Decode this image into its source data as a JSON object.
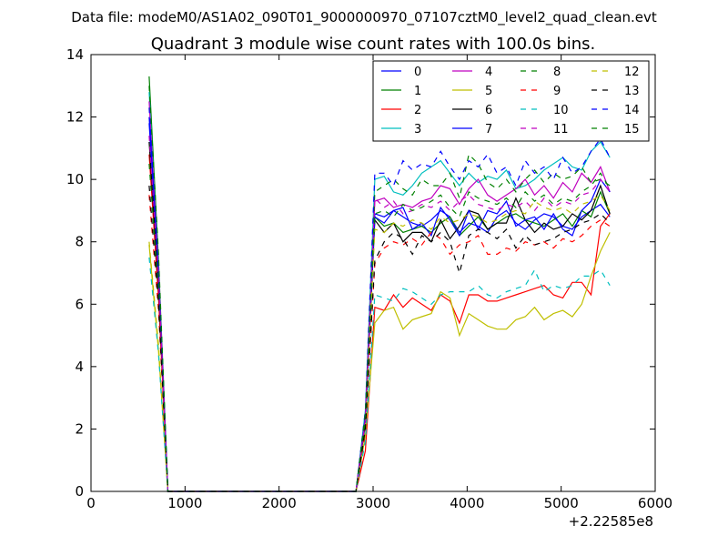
{
  "page": {
    "header": "Data file: modeM0/AS1A02_090T01_9000000970_07107cztM0_level2_quad_clean.evt"
  },
  "chart_data": {
    "type": "line",
    "title": "Quadrant 3 module wise count rates with 100.0s bins.",
    "xlabel": "",
    "ylabel": "",
    "x_offset_label": "+2.22585e8",
    "xlim": [
      0,
      6000
    ],
    "ylim": [
      0,
      14
    ],
    "x_ticks": [
      "0",
      "1000",
      "2000",
      "3000",
      "4000",
      "5000",
      "6000"
    ],
    "y_ticks": [
      "0",
      "2",
      "4",
      "6",
      "8",
      "10",
      "12",
      "14"
    ],
    "grid": false,
    "legend_position": "top-right",
    "legend_columns": 4,
    "x": [
      618,
      718,
      818,
      918,
      1018,
      1118,
      1218,
      1318,
      1418,
      1518,
      1618,
      1718,
      1818,
      1918,
      2018,
      2118,
      2218,
      2318,
      2418,
      2518,
      2618,
      2718,
      2818,
      2918,
      3018,
      3118,
      3218,
      3318,
      3418,
      3518,
      3618,
      3718,
      3818,
      3918,
      4018,
      4118,
      4218,
      4318,
      4418,
      4518,
      4618,
      4718,
      4818,
      4918,
      5018,
      5118,
      5218,
      5318,
      5418,
      5518
    ],
    "series": [
      {
        "name": "0",
        "color": "#0000ff",
        "dash": "solid",
        "values": [
          11.8,
          7.0,
          0,
          0,
          0,
          0,
          0,
          0,
          0,
          0,
          0,
          0,
          0,
          0,
          0,
          0,
          0,
          0,
          0,
          0,
          0,
          0,
          0,
          2.2,
          8.9,
          8.8,
          9.0,
          8.8,
          8.6,
          8.5,
          8.7,
          9.0,
          8.8,
          8.3,
          8.6,
          8.5,
          8.3,
          8.8,
          9.0,
          8.6,
          8.4,
          8.7,
          8.9,
          8.8,
          8.5,
          8.4,
          8.8,
          9.0,
          9.2,
          8.8
        ]
      },
      {
        "name": "1",
        "color": "#008000",
        "dash": "solid",
        "values": [
          13.3,
          7.4,
          0,
          0,
          0,
          0,
          0,
          0,
          0,
          0,
          0,
          0,
          0,
          0,
          0,
          0,
          0,
          0,
          0,
          0,
          0,
          0,
          0,
          2.5,
          8.8,
          8.5,
          8.6,
          8.3,
          8.4,
          8.5,
          8.3,
          8.6,
          8.8,
          8.2,
          8.5,
          8.8,
          8.4,
          8.6,
          8.8,
          8.9,
          8.7,
          8.6,
          8.5,
          8.7,
          8.9,
          8.5,
          9.0,
          8.8,
          9.6,
          8.9
        ]
      },
      {
        "name": "2",
        "color": "#ff0000",
        "dash": "solid",
        "values": [
          10.8,
          6.2,
          0,
          0,
          0,
          0,
          0,
          0,
          0,
          0,
          0,
          0,
          0,
          0,
          0,
          0,
          0,
          0,
          0,
          0,
          0,
          0,
          0,
          1.3,
          5.9,
          5.8,
          6.3,
          5.9,
          6.2,
          6.0,
          5.8,
          6.3,
          6.1,
          5.4,
          6.3,
          6.3,
          6.1,
          6.1,
          6.2,
          6.3,
          6.4,
          6.5,
          6.6,
          6.3,
          6.2,
          6.7,
          6.7,
          6.3,
          8.5,
          8.9
        ]
      },
      {
        "name": "3",
        "color": "#00bfbf",
        "dash": "solid",
        "values": [
          12.8,
          7.2,
          0,
          0,
          0,
          0,
          0,
          0,
          0,
          0,
          0,
          0,
          0,
          0,
          0,
          0,
          0,
          0,
          0,
          0,
          0,
          0,
          0,
          2.6,
          10.0,
          10.1,
          9.6,
          9.5,
          9.8,
          10.2,
          10.4,
          10.6,
          10.2,
          9.8,
          10.2,
          9.9,
          10.1,
          10.0,
          10.3,
          9.7,
          9.8,
          10.0,
          10.3,
          10.5,
          10.7,
          10.4,
          10.3,
          10.9,
          11.2,
          10.7
        ]
      },
      {
        "name": "4",
        "color": "#bf00bf",
        "dash": "solid",
        "values": [
          12.5,
          7.1,
          0,
          0,
          0,
          0,
          0,
          0,
          0,
          0,
          0,
          0,
          0,
          0,
          0,
          0,
          0,
          0,
          0,
          0,
          0,
          0,
          0,
          2.4,
          9.3,
          9.4,
          9.1,
          9.2,
          9.1,
          9.3,
          9.4,
          9.8,
          9.7,
          9.2,
          9.7,
          10.0,
          9.5,
          9.3,
          9.5,
          9.7,
          10.0,
          9.5,
          9.8,
          9.4,
          9.9,
          9.6,
          10.2,
          9.9,
          10.4,
          9.6
        ]
      },
      {
        "name": "5",
        "color": "#bfbf00",
        "dash": "solid",
        "values": [
          7.9,
          4.5,
          0,
          0,
          0,
          0,
          0,
          0,
          0,
          0,
          0,
          0,
          0,
          0,
          0,
          0,
          0,
          0,
          0,
          0,
          0,
          0,
          0,
          1.8,
          5.4,
          5.8,
          5.9,
          5.2,
          5.5,
          5.6,
          5.7,
          6.4,
          6.2,
          5.0,
          5.7,
          5.5,
          5.3,
          5.2,
          5.2,
          5.5,
          5.6,
          5.9,
          5.5,
          5.7,
          5.8,
          5.6,
          6.0,
          6.9,
          7.7,
          8.3
        ]
      },
      {
        "name": "6",
        "color": "#000000",
        "dash": "solid",
        "values": [
          11.2,
          6.6,
          0,
          0,
          0,
          0,
          0,
          0,
          0,
          0,
          0,
          0,
          0,
          0,
          0,
          0,
          0,
          0,
          0,
          0,
          0,
          0,
          0,
          2.2,
          8.7,
          8.3,
          8.6,
          8.0,
          8.3,
          8.3,
          8.0,
          8.7,
          8.1,
          8.5,
          9.0,
          8.9,
          8.4,
          8.6,
          8.6,
          9.4,
          8.7,
          8.3,
          8.6,
          8.4,
          8.5,
          8.9,
          8.7,
          9.0,
          9.8,
          8.9
        ]
      },
      {
        "name": "7",
        "color": "#0000ff",
        "dash": "solid",
        "values": [
          12.0,
          7.0,
          0,
          0,
          0,
          0,
          0,
          0,
          0,
          0,
          0,
          0,
          0,
          0,
          0,
          0,
          0,
          0,
          0,
          0,
          0,
          0,
          0,
          2.4,
          8.8,
          8.6,
          9.0,
          9.1,
          8.4,
          8.6,
          8.2,
          9.1,
          8.7,
          8.2,
          9.0,
          8.4,
          9.0,
          8.9,
          9.3,
          8.5,
          8.7,
          8.8,
          8.4,
          8.9,
          8.4,
          8.2,
          9.0,
          9.3,
          10.0,
          9.6
        ]
      },
      {
        "name": "8",
        "color": "#008000",
        "dash": "dashed",
        "values": [
          10.5,
          6.4,
          0,
          0,
          0,
          0,
          0,
          0,
          0,
          0,
          0,
          0,
          0,
          0,
          0,
          0,
          0,
          0,
          0,
          0,
          0,
          0,
          0,
          2.3,
          9.6,
          9.8,
          10.0,
          9.7,
          9.5,
          10.0,
          9.8,
          9.8,
          10.2,
          9.4,
          10.8,
          10.5,
          9.9,
          9.7,
          10.0,
          9.6,
          10.0,
          10.3,
          9.9,
          10.2,
          10.0,
          10.1,
          10.4,
          9.9,
          10.0,
          9.8
        ]
      },
      {
        "name": "9",
        "color": "#ff0000",
        "dash": "dashed",
        "values": [
          9.5,
          5.8,
          0,
          0,
          0,
          0,
          0,
          0,
          0,
          0,
          0,
          0,
          0,
          0,
          0,
          0,
          0,
          0,
          0,
          0,
          0,
          0,
          0,
          1.9,
          7.3,
          7.8,
          8.0,
          7.9,
          8.1,
          7.9,
          8.3,
          8.1,
          7.6,
          7.9,
          8.0,
          8.2,
          7.6,
          7.6,
          7.8,
          7.7,
          8.0,
          7.9,
          8.0,
          7.8,
          8.1,
          8.0,
          8.2,
          8.5,
          8.7,
          8.5
        ]
      },
      {
        "name": "10",
        "color": "#00bfbf",
        "dash": "dashed",
        "values": [
          7.5,
          4.4,
          0,
          0,
          0,
          0,
          0,
          0,
          0,
          0,
          0,
          0,
          0,
          0,
          0,
          0,
          0,
          0,
          0,
          0,
          0,
          0,
          0,
          1.6,
          6.3,
          6.2,
          6.1,
          6.5,
          6.4,
          6.2,
          6.0,
          6.3,
          6.4,
          6.4,
          6.4,
          6.6,
          6.3,
          6.2,
          6.4,
          6.5,
          6.6,
          7.1,
          6.4,
          6.6,
          6.5,
          6.6,
          6.9,
          6.9,
          7.1,
          6.6
        ]
      },
      {
        "name": "11",
        "color": "#bf00bf",
        "dash": "dashed",
        "values": [
          11.4,
          6.8,
          0,
          0,
          0,
          0,
          0,
          0,
          0,
          0,
          0,
          0,
          0,
          0,
          0,
          0,
          0,
          0,
          0,
          0,
          0,
          0,
          0,
          2.3,
          9.4,
          9.1,
          9.3,
          8.9,
          9.0,
          9.2,
          9.1,
          9.3,
          9.0,
          9.3,
          9.5,
          9.2,
          9.1,
          9.0,
          9.2,
          9.1,
          9.3,
          9.0,
          9.4,
          9.1,
          9.3,
          9.2,
          9.5,
          9.6,
          10.0,
          9.6
        ]
      },
      {
        "name": "12",
        "color": "#bfbf00",
        "dash": "dashed",
        "values": [
          8.0,
          4.7,
          0,
          0,
          0,
          0,
          0,
          0,
          0,
          0,
          0,
          0,
          0,
          0,
          0,
          0,
          0,
          0,
          0,
          0,
          0,
          0,
          0,
          1.9,
          8.4,
          8.3,
          8.6,
          8.5,
          8.7,
          8.6,
          8.4,
          8.8,
          8.6,
          8.7,
          8.9,
          8.8,
          8.6,
          8.7,
          8.9,
          9.0,
          8.9,
          9.3,
          9.1,
          9.0,
          9.1,
          8.9,
          9.2,
          9.3,
          9.5,
          9.0
        ]
      },
      {
        "name": "13",
        "color": "#000000",
        "dash": "dashed",
        "values": [
          9.8,
          6.0,
          0,
          0,
          0,
          0,
          0,
          0,
          0,
          0,
          0,
          0,
          0,
          0,
          0,
          0,
          0,
          0,
          0,
          0,
          0,
          0,
          0,
          2.0,
          7.4,
          8.0,
          8.3,
          8.1,
          7.6,
          8.2,
          8.0,
          8.3,
          8.0,
          7.0,
          8.2,
          8.4,
          8.3,
          8.1,
          8.4,
          7.8,
          8.2,
          7.9,
          8.0,
          8.1,
          8.3,
          8.4,
          8.6,
          8.7,
          8.9,
          8.6
        ]
      },
      {
        "name": "14",
        "color": "#0000ff",
        "dash": "dashed",
        "values": [
          12.3,
          7.2,
          0,
          0,
          0,
          0,
          0,
          0,
          0,
          0,
          0,
          0,
          0,
          0,
          0,
          0,
          0,
          0,
          0,
          0,
          0,
          0,
          0,
          2.6,
          10.2,
          10.2,
          9.8,
          10.6,
          10.3,
          10.5,
          10.4,
          10.9,
          10.4,
          10.0,
          10.6,
          10.4,
          10.8,
          10.2,
          10.4,
          9.8,
          10.6,
          10.2,
          10.4,
          10.0,
          10.7,
          10.2,
          10.4,
          10.9,
          11.3,
          10.7
        ]
      },
      {
        "name": "15",
        "color": "#008000",
        "dash": "dashed",
        "values": [
          13.0,
          7.6,
          0,
          0,
          0,
          0,
          0,
          0,
          0,
          0,
          0,
          0,
          0,
          0,
          0,
          0,
          0,
          0,
          0,
          0,
          0,
          0,
          0,
          2.5,
          8.9,
          9.0,
          8.8,
          9.2,
          9.0,
          9.1,
          9.3,
          9.5,
          9.1,
          8.8,
          9.6,
          9.4,
          9.3,
          9.2,
          9.4,
          9.1,
          9.6,
          9.3,
          9.5,
          9.2,
          9.4,
          9.3,
          9.6,
          9.8,
          10.2,
          9.7
        ]
      }
    ]
  }
}
